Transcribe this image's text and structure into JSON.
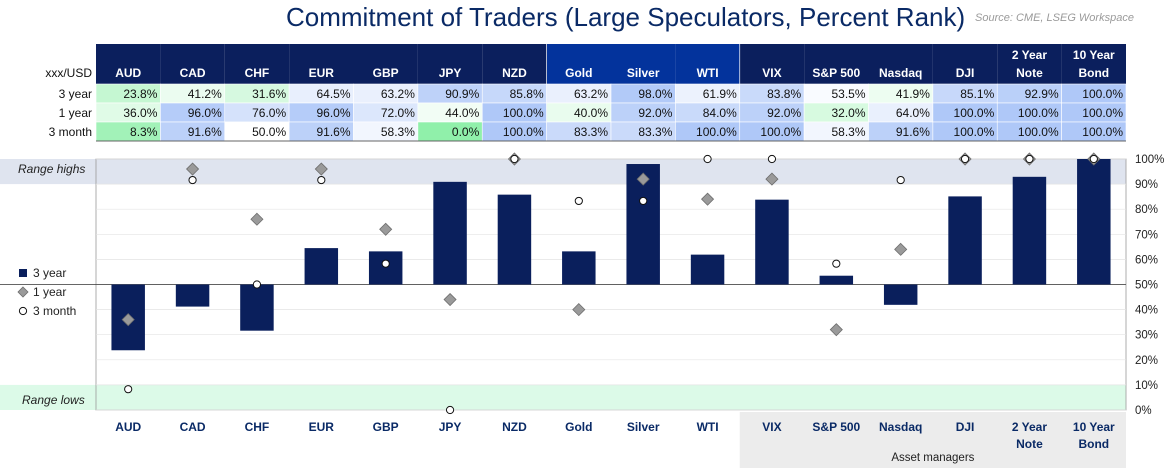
{
  "title": "Commitment of Traders (Large Speculators, Percent Rank)",
  "source": "Source: CME, LSEG Workspace",
  "table": {
    "corner_label": "xxx/USD",
    "columns": [
      "AUD",
      "CAD",
      "CHF",
      "EUR",
      "GBP",
      "JPY",
      "NZD",
      "Gold",
      "Silver",
      "WTI",
      "VIX",
      "S&P 500",
      "Nasdaq",
      "DJI",
      "2 Year Note",
      "10 Year Bond"
    ],
    "rows": [
      {
        "label": "3 year",
        "values": [
          "23.8%",
          "41.2%",
          "31.6%",
          "64.5%",
          "63.2%",
          "90.9%",
          "85.8%",
          "63.2%",
          "98.0%",
          "61.9%",
          "83.8%",
          "53.5%",
          "41.9%",
          "85.1%",
          "92.9%",
          "100.0%"
        ]
      },
      {
        "label": "1 year",
        "values": [
          "36.0%",
          "96.0%",
          "76.0%",
          "96.0%",
          "72.0%",
          "44.0%",
          "100.0%",
          "40.0%",
          "92.0%",
          "84.0%",
          "92.0%",
          "32.0%",
          "64.0%",
          "100.0%",
          "100.0%",
          "100.0%"
        ]
      },
      {
        "label": "3 month",
        "values": [
          "8.3%",
          "91.6%",
          "50.0%",
          "91.6%",
          "58.3%",
          "0.0%",
          "100.0%",
          "83.3%",
          "83.3%",
          "100.0%",
          "100.0%",
          "58.3%",
          "91.6%",
          "100.0%",
          "100.0%",
          "100.0%"
        ]
      }
    ]
  },
  "chart_data": {
    "type": "bar",
    "title": "Commitment of Traders (Large Speculators, Percent Rank)",
    "categories": [
      "AUD",
      "CAD",
      "CHF",
      "EUR",
      "GBP",
      "JPY",
      "NZD",
      "Gold",
      "Silver",
      "WTI",
      "VIX",
      "S&P 500",
      "Nasdaq",
      "DJI",
      "2 Year Note",
      "10 Year Bond"
    ],
    "baseline": 50,
    "ylim": [
      0,
      100
    ],
    "y_ticks": [
      "0%",
      "10%",
      "20%",
      "30%",
      "40%",
      "50%",
      "60%",
      "70%",
      "80%",
      "90%",
      "100%"
    ],
    "series": [
      {
        "name": "3 year",
        "style": "bar",
        "color": "#0a1f5c",
        "values": [
          23.8,
          41.2,
          31.6,
          64.5,
          63.2,
          90.9,
          85.8,
          63.2,
          98.0,
          61.9,
          83.8,
          53.5,
          41.9,
          85.1,
          92.9,
          100.0
        ]
      },
      {
        "name": "1 year",
        "style": "diamond",
        "color": "#9a9a9a",
        "values": [
          36.0,
          96.0,
          76.0,
          96.0,
          72.0,
          44.0,
          100.0,
          40.0,
          92.0,
          84.0,
          92.0,
          32.0,
          64.0,
          100.0,
          100.0,
          100.0
        ]
      },
      {
        "name": "3 month",
        "style": "circle",
        "color": "#ffffff",
        "values": [
          8.3,
          91.6,
          50.0,
          91.6,
          58.3,
          0.0,
          100.0,
          83.3,
          83.3,
          100.0,
          100.0,
          58.3,
          91.6,
          100.0,
          100.0,
          100.0
        ]
      }
    ],
    "bands": {
      "high": {
        "label": "Range highs",
        "from": 90,
        "to": 100,
        "color": "#dfe4ef"
      },
      "low": {
        "label": "Range lows",
        "from": 0,
        "to": 10,
        "color": "#dcfae8"
      }
    },
    "group_label": "Asset managers",
    "grid": true
  }
}
